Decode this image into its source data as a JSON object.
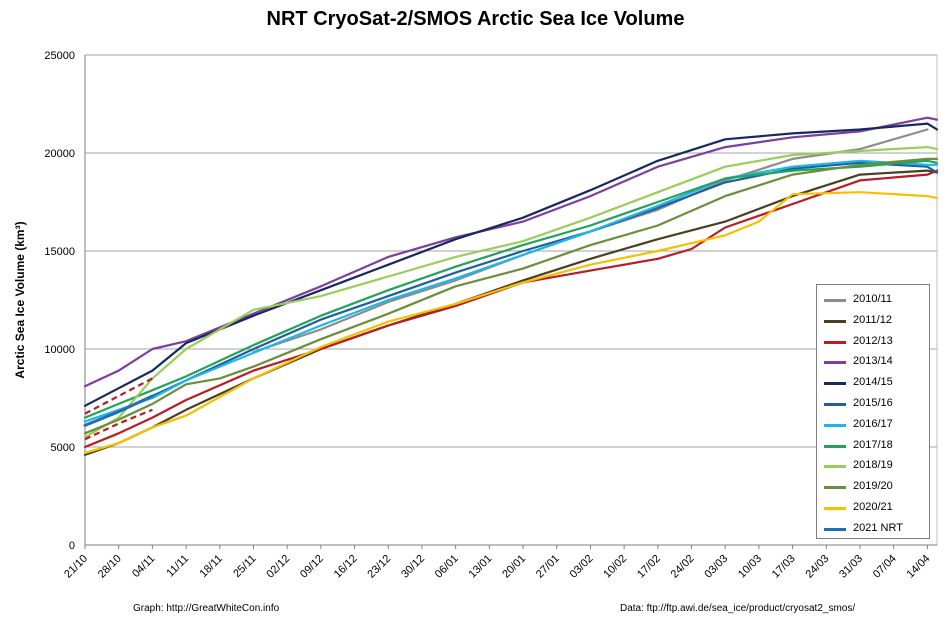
{
  "chart_data": {
    "type": "line",
    "title": "NRT CryoSat-2/SMOS Arctic Sea Ice Volume",
    "ylabel": "Arctic Sea Ice Volume (km³)",
    "xlabel": "",
    "ylim": [
      0,
      25000
    ],
    "yticks": [
      0,
      5000,
      10000,
      15000,
      20000,
      25000
    ],
    "xticks": [
      "21/10",
      "28/10",
      "04/11",
      "11/11",
      "18/11",
      "25/11",
      "02/12",
      "09/12",
      "16/12",
      "23/12",
      "30/12",
      "06/01",
      "13/01",
      "20/01",
      "27/01",
      "03/02",
      "10/02",
      "17/02",
      "24/02",
      "03/03",
      "10/03",
      "17/03",
      "24/03",
      "31/03",
      "07/04",
      "14/04"
    ],
    "x_unit": "days since 21 October",
    "grid": "horizontal",
    "legend_position": "right",
    "series": [
      {
        "name": "2010/11",
        "color": "#8c8c8c",
        "x": [
          35,
          49,
          63,
          77,
          91,
          105,
          119,
          133,
          147,
          161,
          175
        ],
        "values": [
          9850,
          11000,
          12400,
          13500,
          14800,
          16000,
          17100,
          18600,
          19700,
          20200,
          21200
        ]
      },
      {
        "name": "2011/12",
        "color": "#4a3f1f",
        "x": [
          0,
          7,
          14,
          21,
          35,
          49,
          63,
          77,
          91,
          105,
          119,
          133,
          147,
          161,
          175,
          177
        ],
        "values": [
          4600,
          5200,
          6000,
          6900,
          8500,
          10000,
          11200,
          12300,
          13500,
          14600,
          15600,
          16500,
          17800,
          18900,
          19100,
          19000
        ]
      },
      {
        "name": "2012/13",
        "color": "#b81d25",
        "x": [
          0,
          7,
          14,
          21,
          35,
          49,
          63,
          77,
          91,
          105,
          119,
          126,
          133,
          147,
          161,
          175,
          177
        ],
        "values": [
          5000,
          5700,
          6500,
          7400,
          8900,
          10000,
          11200,
          12200,
          13400,
          14000,
          14600,
          15100,
          16200,
          17400,
          18600,
          18900,
          19100
        ]
      },
      {
        "name": "2013/14",
        "color": "#7b3fa0",
        "x": [
          0,
          7,
          14,
          21,
          35,
          49,
          63,
          77,
          91,
          105,
          119,
          133,
          147,
          161,
          175,
          177
        ],
        "values": [
          8100,
          8900,
          10000,
          10400,
          11800,
          13200,
          14700,
          15700,
          16500,
          17800,
          19300,
          20300,
          20800,
          21100,
          21800,
          21700
        ]
      },
      {
        "name": "2014/15",
        "color": "#172a5e",
        "x": [
          0,
          7,
          14,
          21,
          35,
          49,
          63,
          77,
          91,
          105,
          119,
          133,
          147,
          161,
          175,
          177
        ],
        "values": [
          7100,
          8000,
          8900,
          10300,
          11700,
          13000,
          14300,
          15600,
          16700,
          18100,
          19600,
          20700,
          21000,
          21200,
          21500,
          21200
        ]
      },
      {
        "name": "2015/16",
        "color": "#1f5f9f",
        "x": [
          0,
          7,
          14,
          21,
          35,
          49,
          63,
          77,
          91,
          105,
          119,
          133,
          147,
          161,
          175,
          177
        ],
        "values": [
          6100,
          6800,
          7600,
          8400,
          10000,
          11500,
          12700,
          13900,
          15000,
          16000,
          17200,
          18500,
          19200,
          19500,
          19300,
          19000
        ]
      },
      {
        "name": "2016/17",
        "color": "#1eb6e8",
        "x": [
          0,
          7,
          14,
          21,
          35,
          49,
          63,
          77,
          91,
          105,
          119,
          133,
          147,
          161,
          175,
          177
        ],
        "values": [
          6300,
          6900,
          7500,
          8400,
          9800,
          11200,
          12500,
          13600,
          14800,
          16000,
          17300,
          18700,
          19300,
          19600,
          19400,
          19400
        ]
      },
      {
        "name": "2017/18",
        "color": "#22a35a",
        "x": [
          0,
          7,
          14,
          21,
          35,
          49,
          63,
          77,
          91,
          105,
          119,
          133,
          147,
          161,
          175,
          177
        ],
        "values": [
          6500,
          7200,
          7900,
          8600,
          10200,
          11700,
          13000,
          14200,
          15300,
          16300,
          17500,
          18700,
          19100,
          19300,
          19600,
          19500
        ]
      },
      {
        "name": "2018/19",
        "color": "#9acd5a",
        "x": [
          0,
          7,
          14,
          21,
          35,
          49,
          63,
          77,
          91,
          105,
          119,
          133,
          147,
          161,
          175,
          177
        ],
        "values": [
          5500,
          6500,
          8500,
          10000,
          12000,
          12700,
          13700,
          14700,
          15500,
          16700,
          18000,
          19300,
          19900,
          20100,
          20300,
          20200
        ]
      },
      {
        "name": "2019/20",
        "color": "#6b8e3a",
        "x": [
          0,
          7,
          14,
          21,
          28,
          35,
          49,
          63,
          77,
          91,
          105,
          119,
          133,
          147,
          161,
          175,
          177
        ],
        "values": [
          5700,
          6400,
          7200,
          8200,
          8500,
          9100,
          10500,
          11800,
          13200,
          14100,
          15300,
          16300,
          17800,
          18900,
          19400,
          19700,
          19700
        ]
      },
      {
        "name": "2020/21",
        "color": "#f5c000",
        "x": [
          0,
          7,
          14,
          21,
          35,
          49,
          63,
          77,
          91,
          105,
          119,
          133,
          140,
          147,
          161,
          175,
          177
        ],
        "values": [
          4700,
          5200,
          6000,
          6600,
          8500,
          10100,
          11400,
          12300,
          13400,
          14300,
          15000,
          15800,
          16500,
          17900,
          18000,
          17800,
          17700
        ]
      },
      {
        "name": "2021 NRT",
        "color": "#1f6fb4",
        "x": [
          0,
          7,
          14
        ],
        "values": [
          6100,
          6800,
          7600
        ]
      }
    ],
    "dashed": [
      {
        "color": "#b81d25",
        "x": [
          0,
          7,
          14
        ],
        "values": [
          6700,
          7600,
          8500
        ]
      },
      {
        "color": "#b81d25",
        "x": [
          0,
          7,
          14
        ],
        "values": [
          5400,
          6200,
          6900
        ]
      }
    ]
  },
  "footer": {
    "left": "Graph: http://GreatWhiteCon.info",
    "right": "Data: ftp://ftp.awi.de/sea_ice/product/cryosat2_smos/"
  }
}
